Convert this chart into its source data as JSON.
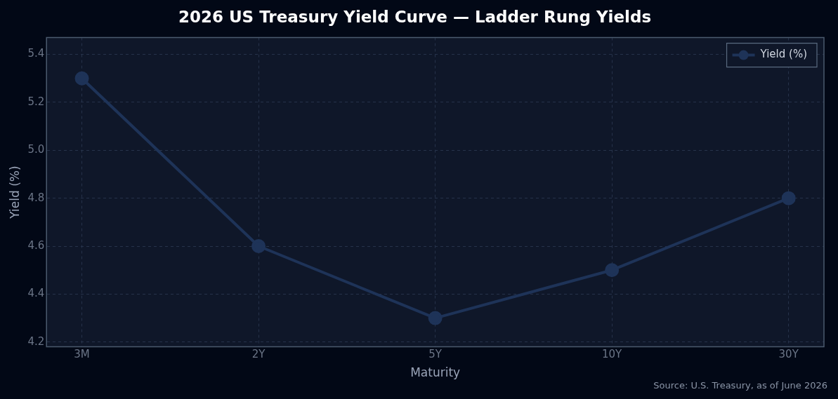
{
  "chart_data": {
    "type": "line",
    "title": "2026 US Treasury Yield Curve — Ladder Rung Yields",
    "xlabel": "Maturity",
    "ylabel": "Yield (%)",
    "categories": [
      "3M",
      "2Y",
      "5Y",
      "10Y",
      "30Y"
    ],
    "series": [
      {
        "name": "Yield (%)",
        "color": "#1e3358",
        "values": [
          5.3,
          4.6,
          4.3,
          4.5,
          4.8
        ]
      }
    ],
    "ylim": [
      4.18,
      5.47
    ],
    "yticks": [
      4.2,
      4.4,
      4.6,
      4.8,
      {
        "value": 5.0,
        "label": "5.0"
      },
      5.2,
      5.4
    ],
    "grid": true,
    "legend": "top right",
    "marker": "circle",
    "line_style": "solid",
    "annotations": [
      "Source: U.S. Treasury, as of June 2026"
    ]
  }
}
